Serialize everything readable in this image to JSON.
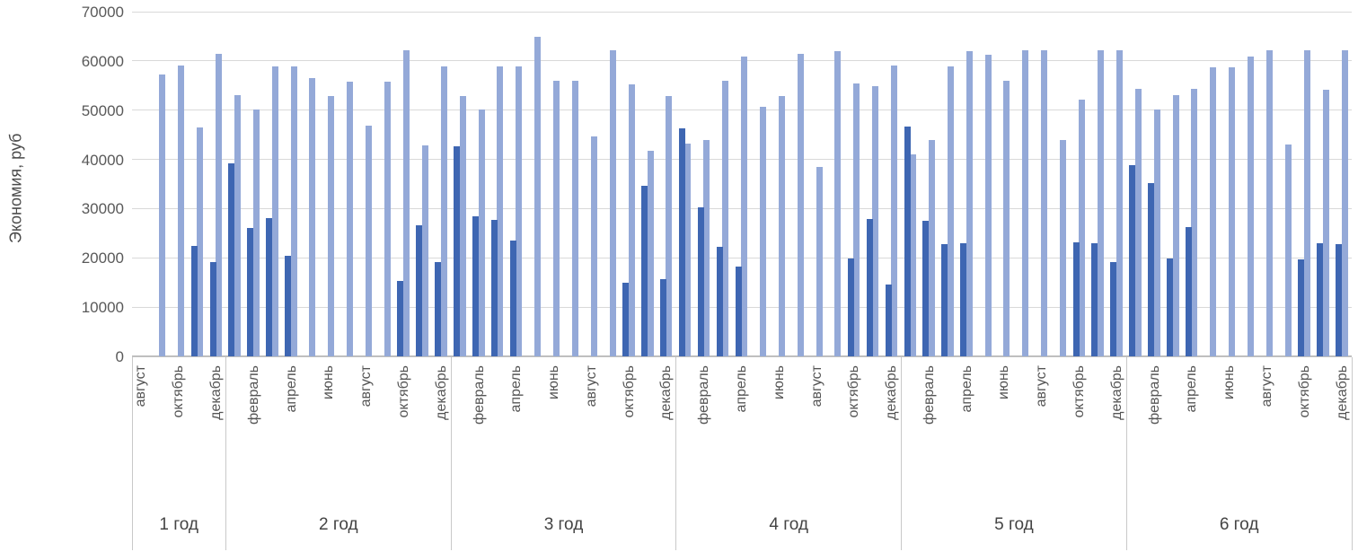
{
  "chart_data": {
    "type": "bar",
    "title": "",
    "ylabel": "Экономия, руб",
    "xlabel": "",
    "ylim": [
      0,
      70000
    ],
    "yticks": [
      0,
      10000,
      20000,
      30000,
      40000,
      50000,
      60000,
      70000
    ],
    "grid": "horizontal",
    "legend": "none",
    "series": [
      {
        "id": "dark",
        "color": "#3E66B2"
      },
      {
        "id": "light",
        "color": "#94A9D8"
      }
    ],
    "groups": [
      {
        "label": "1 год",
        "months": [
          {
            "tick": "август",
            "dark": null,
            "light": null
          },
          {
            "tick": "",
            "dark": null,
            "light": 57200
          },
          {
            "tick": "октябрь",
            "dark": null,
            "light": 59000
          },
          {
            "tick": "",
            "dark": 22400,
            "light": 46500
          },
          {
            "tick": "декабрь",
            "dark": 19200,
            "light": 61400
          }
        ]
      },
      {
        "label": "2 год",
        "months": [
          {
            "tick": "",
            "dark": 39200,
            "light": 53100
          },
          {
            "tick": "февраль",
            "dark": 26000,
            "light": 50200
          },
          {
            "tick": "",
            "dark": 28000,
            "light": 58800
          },
          {
            "tick": "апрель",
            "dark": 20500,
            "light": 58800
          },
          {
            "tick": "",
            "dark": null,
            "light": 56600
          },
          {
            "tick": "июнь",
            "dark": null,
            "light": 52900
          },
          {
            "tick": "",
            "dark": null,
            "light": 55700
          },
          {
            "tick": "август",
            "dark": null,
            "light": 46900
          },
          {
            "tick": "",
            "dark": null,
            "light": 55700
          },
          {
            "tick": "октябрь",
            "dark": 15400,
            "light": 62100
          },
          {
            "tick": "",
            "dark": 26600,
            "light": 42900
          },
          {
            "tick": "декабрь",
            "dark": 19100,
            "light": 58800
          }
        ]
      },
      {
        "label": "3 год",
        "months": [
          {
            "tick": "",
            "dark": 42700,
            "light": 52900
          },
          {
            "tick": "февраль",
            "dark": 28400,
            "light": 50200
          },
          {
            "tick": "",
            "dark": 27700,
            "light": 58800
          },
          {
            "tick": "апрель",
            "dark": 23600,
            "light": 58800
          },
          {
            "tick": "",
            "dark": null,
            "light": 64900
          },
          {
            "tick": "июнь",
            "dark": null,
            "light": 55900
          },
          {
            "tick": "",
            "dark": null,
            "light": 55900
          },
          {
            "tick": "август",
            "dark": null,
            "light": 44700
          },
          {
            "tick": "",
            "dark": null,
            "light": 62100
          },
          {
            "tick": "октябрь",
            "dark": 14900,
            "light": 55300
          },
          {
            "tick": "",
            "dark": 34600,
            "light": 41800
          },
          {
            "tick": "декабрь",
            "dark": 15600,
            "light": 52900
          }
        ]
      },
      {
        "label": "4 год",
        "months": [
          {
            "tick": "",
            "dark": 46300,
            "light": 43200
          },
          {
            "tick": "февраль",
            "dark": 30300,
            "light": 44000
          },
          {
            "tick": "",
            "dark": 22200,
            "light": 55900
          },
          {
            "tick": "апрель",
            "dark": 18200,
            "light": 60800
          },
          {
            "tick": "",
            "dark": null,
            "light": 50600
          },
          {
            "tick": "июнь",
            "dark": null,
            "light": 52900
          },
          {
            "tick": "",
            "dark": null,
            "light": 61400
          },
          {
            "tick": "август",
            "dark": null,
            "light": 38500
          },
          {
            "tick": "",
            "dark": null,
            "light": 61900
          },
          {
            "tick": "октябрь",
            "dark": 19900,
            "light": 55500
          },
          {
            "tick": "",
            "dark": 27800,
            "light": 54800
          },
          {
            "tick": "декабрь",
            "dark": 14500,
            "light": 59000
          }
        ]
      },
      {
        "label": "5 год",
        "months": [
          {
            "tick": "",
            "dark": 46600,
            "light": 41000
          },
          {
            "tick": "февраль",
            "dark": 27500,
            "light": 44000
          },
          {
            "tick": "",
            "dark": 22700,
            "light": 58800
          },
          {
            "tick": "апрель",
            "dark": 22900,
            "light": 61900
          },
          {
            "tick": "",
            "dark": null,
            "light": 61200
          },
          {
            "tick": "июнь",
            "dark": null,
            "light": 55900
          },
          {
            "tick": "",
            "dark": null,
            "light": 62100
          },
          {
            "tick": "август",
            "dark": null,
            "light": 62100
          },
          {
            "tick": "",
            "dark": null,
            "light": 43900
          },
          {
            "tick": "октябрь",
            "dark": 23100,
            "light": 52200
          },
          {
            "tick": "",
            "dark": 22900,
            "light": 62100
          },
          {
            "tick": "декабрь",
            "dark": 19200,
            "light": 62100
          }
        ]
      },
      {
        "label": "6 год",
        "months": [
          {
            "tick": "",
            "dark": 38800,
            "light": 54300
          },
          {
            "tick": "февраль",
            "dark": 35200,
            "light": 50200
          },
          {
            "tick": "",
            "dark": 19900,
            "light": 53000
          },
          {
            "tick": "апрель",
            "dark": 26200,
            "light": 54400
          },
          {
            "tick": "",
            "dark": null,
            "light": 58700
          },
          {
            "tick": "июнь",
            "dark": null,
            "light": 58700
          },
          {
            "tick": "",
            "dark": null,
            "light": 60800
          },
          {
            "tick": "август",
            "dark": null,
            "light": 62100
          },
          {
            "tick": "",
            "dark": null,
            "light": 43100
          },
          {
            "tick": "октябрь",
            "dark": 19600,
            "light": 62100
          },
          {
            "tick": "",
            "dark": 22900,
            "light": 54100
          },
          {
            "tick": "декабрь",
            "dark": 22700,
            "light": 62100
          }
        ]
      }
    ]
  }
}
